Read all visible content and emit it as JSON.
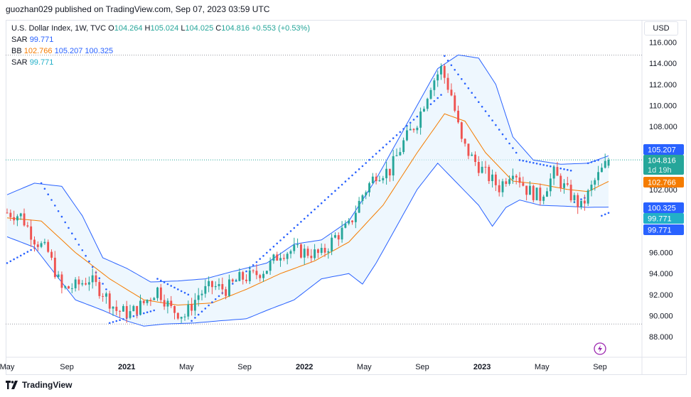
{
  "header": {
    "text": "guozhan029 published on TradingView.com, Sep 07, 2023 03:59 UTC"
  },
  "legend": {
    "symbol": "U.S. Dollar Index, 1W, TVC",
    "open_label": "O",
    "open": "104.264",
    "high_label": "H",
    "high": "105.024",
    "low_label": "L",
    "low": "104.025",
    "close_label": "C",
    "close": "104.816",
    "change": "+0.553 (+0.53%)",
    "sar1_label": "SAR",
    "sar1": "99.771",
    "bb_label": "BB",
    "bb_basis": "102.766",
    "bb_upper": "105.207",
    "bb_lower": "100.325",
    "sar2_label": "SAR",
    "sar2": "99.771"
  },
  "currency_button": "USD",
  "footer": {
    "brand": "TradingView"
  },
  "badges": {
    "upper": "105.207",
    "price": "104.816",
    "countdown": "1d 19h",
    "basis": "102.766",
    "lower": "100.325",
    "sar1": "99.771",
    "sar2": "99.771"
  },
  "colors": {
    "up": "#26a69a",
    "down": "#ef5350",
    "bb_band": "#2962ff",
    "bb_basis": "#f57c00",
    "bb_fill": "#e3f2fd",
    "sar": "#2962ff"
  },
  "chart_data": {
    "type": "candlestick",
    "title": "U.S. Dollar Index, 1W, TVC",
    "ylim": [
      86.5,
      117.0
    ],
    "y_ticks": [
      "88.000",
      "90.000",
      "92.000",
      "94.000",
      "96.000",
      "98.000",
      "100.000",
      "102.000",
      "104.000",
      "106.000",
      "108.000",
      "110.000",
      "112.000",
      "114.000",
      "116.000"
    ],
    "x_ticks": [
      "May",
      "Sep",
      "2021",
      "May",
      "Sep",
      "2022",
      "May",
      "Sep",
      "2023",
      "May",
      "Sep"
    ],
    "x_tick_weeks": [
      0,
      17.5,
      35,
      52.5,
      69.5,
      87,
      104.5,
      121.5,
      139,
      156.5,
      173.5
    ],
    "reference_lines": {
      "high": 114.78,
      "low": 89.2
    },
    "close_path": [
      [
        0,
        99.8
      ],
      [
        4,
        99.5
      ],
      [
        8,
        97.3
      ],
      [
        12,
        96.0
      ],
      [
        16,
        92.5
      ],
      [
        20,
        92.8
      ],
      [
        24,
        93.5
      ],
      [
        28,
        92.2
      ],
      [
        32,
        90.5
      ],
      [
        36,
        90.2
      ],
      [
        40,
        91.2
      ],
      [
        44,
        92.5
      ],
      [
        48,
        90.6
      ],
      [
        52,
        90.0
      ],
      [
        56,
        92.0
      ],
      [
        60,
        92.8
      ],
      [
        64,
        92.5
      ],
      [
        68,
        93.5
      ],
      [
        72,
        93.8
      ],
      [
        76,
        94.5
      ],
      [
        80,
        96.0
      ],
      [
        84,
        96.2
      ],
      [
        88,
        96.0
      ],
      [
        92,
        95.8
      ],
      [
        96,
        97.5
      ],
      [
        100,
        98.5
      ],
      [
        104,
        101.5
      ],
      [
        108,
        103.5
      ],
      [
        112,
        103.8
      ],
      [
        116,
        106.5
      ],
      [
        120,
        108.5
      ],
      [
        124,
        112.0
      ],
      [
        127,
        113.5
      ],
      [
        130,
        111.0
      ],
      [
        133,
        106.5
      ],
      [
        136,
        105.0
      ],
      [
        140,
        103.5
      ],
      [
        144,
        102.2
      ],
      [
        148,
        104.0
      ],
      [
        152,
        102.0
      ],
      [
        156,
        101.3
      ],
      [
        160,
        103.5
      ],
      [
        164,
        101.8
      ],
      [
        168,
        100.3
      ],
      [
        172,
        102.8
      ],
      [
        176,
        104.82
      ]
    ],
    "series": [
      {
        "name": "BB basis",
        "color": "#f57c00",
        "points": [
          [
            0,
            99.3
          ],
          [
            10,
            99.0
          ],
          [
            20,
            96.0
          ],
          [
            30,
            93.5
          ],
          [
            40,
            91.5
          ],
          [
            50,
            91.0
          ],
          [
            60,
            91.2
          ],
          [
            70,
            92.5
          ],
          [
            80,
            94.0
          ],
          [
            90,
            95.2
          ],
          [
            100,
            97.0
          ],
          [
            110,
            100.5
          ],
          [
            120,
            105.5
          ],
          [
            128,
            109.2
          ],
          [
            134,
            108.5
          ],
          [
            140,
            105.5
          ],
          [
            148,
            102.8
          ],
          [
            156,
            102.5
          ],
          [
            164,
            102.0
          ],
          [
            170,
            101.8
          ],
          [
            176,
            102.766
          ]
        ]
      },
      {
        "name": "BB upper",
        "color": "#2962ff",
        "points": [
          [
            0,
            101.5
          ],
          [
            8,
            102.6
          ],
          [
            16,
            102.3
          ],
          [
            22,
            99.5
          ],
          [
            28,
            95.5
          ],
          [
            35,
            94.5
          ],
          [
            42,
            93.2
          ],
          [
            50,
            93.3
          ],
          [
            58,
            93.5
          ],
          [
            66,
            94.2
          ],
          [
            76,
            95.0
          ],
          [
            84,
            96.8
          ],
          [
            92,
            97.2
          ],
          [
            100,
            99.0
          ],
          [
            108,
            103.0
          ],
          [
            114,
            106.5
          ],
          [
            120,
            110.0
          ],
          [
            126,
            113.5
          ],
          [
            132,
            114.8
          ],
          [
            138,
            114.5
          ],
          [
            143,
            112.0
          ],
          [
            148,
            107.0
          ],
          [
            154,
            104.8
          ],
          [
            162,
            104.4
          ],
          [
            170,
            104.5
          ],
          [
            176,
            105.207
          ]
        ]
      },
      {
        "name": "BB lower",
        "color": "#2962ff",
        "points": [
          [
            0,
            97.5
          ],
          [
            8,
            96.5
          ],
          [
            14,
            94.0
          ],
          [
            20,
            91.5
          ],
          [
            28,
            90.5
          ],
          [
            35,
            89.5
          ],
          [
            40,
            89.0
          ],
          [
            46,
            89.2
          ],
          [
            55,
            89.3
          ],
          [
            62,
            89.5
          ],
          [
            70,
            89.7
          ],
          [
            76,
            90.5
          ],
          [
            84,
            91.5
          ],
          [
            92,
            93.5
          ],
          [
            100,
            94.0
          ],
          [
            104,
            93.0
          ],
          [
            108,
            95.0
          ],
          [
            114,
            98.5
          ],
          [
            120,
            102.0
          ],
          [
            126,
            104.5
          ],
          [
            132,
            102.5
          ],
          [
            138,
            100.5
          ],
          [
            142,
            98.5
          ],
          [
            146,
            100.3
          ],
          [
            150,
            101.0
          ],
          [
            156,
            100.5
          ],
          [
            164,
            100.4
          ],
          [
            170,
            100.3
          ],
          [
            176,
            100.325
          ]
        ]
      },
      {
        "name": "SAR",
        "color": "#2962ff",
        "segments": [
          {
            "from": 0,
            "to": 9,
            "start": 95.0,
            "end": 96.6
          },
          {
            "from": 10,
            "to": 29,
            "start": 102.6,
            "end": 92.5
          },
          {
            "from": 30,
            "to": 43,
            "start": 89.3,
            "end": 90.5
          },
          {
            "from": 44,
            "to": 53,
            "start": 93.5,
            "end": 92.0
          },
          {
            "from": 54,
            "to": 127,
            "start": 89.5,
            "end": 111.0
          },
          {
            "from": 128,
            "to": 149,
            "start": 114.7,
            "end": 105.5
          },
          {
            "from": 150,
            "to": 165,
            "start": 104.8,
            "end": 103.8
          },
          {
            "from": 166,
            "to": 169,
            "start": 100.8,
            "end": 101.2
          },
          {
            "from": 170,
            "to": 173,
            "start": 104.5,
            "end": 104.8
          },
          {
            "from": 174,
            "to": 176,
            "start": 99.5,
            "end": 99.771
          }
        ]
      }
    ],
    "last": {
      "open": 104.264,
      "high": 105.024,
      "low": 104.025,
      "close": 104.816
    }
  }
}
